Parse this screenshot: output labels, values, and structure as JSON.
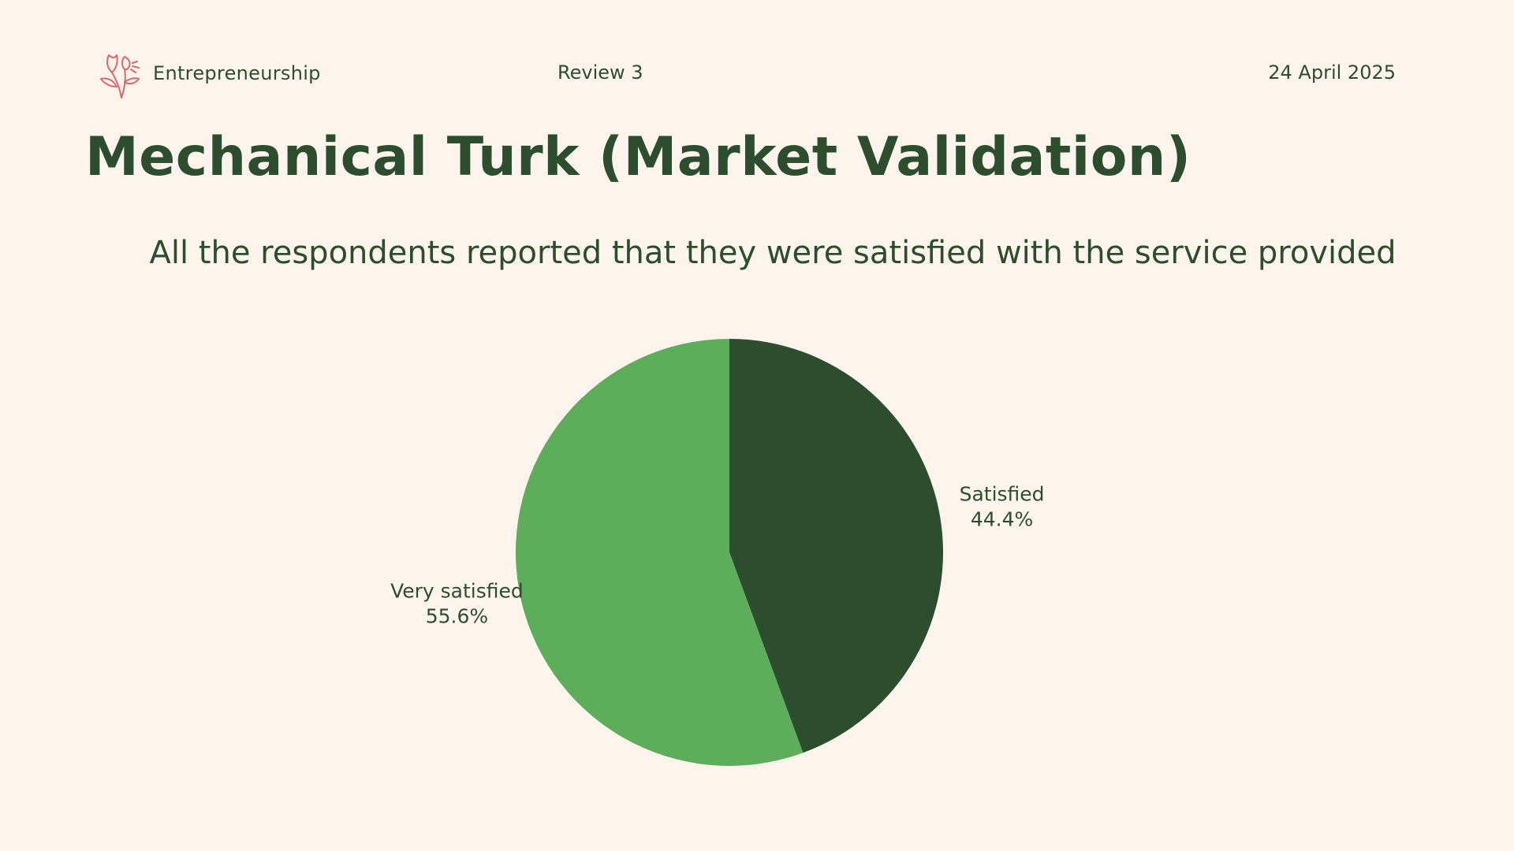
{
  "header": {
    "brand": "Entrepreneurship",
    "review": "Review 3",
    "date": "24 April 2025"
  },
  "title": "Mechanical Turk (Market Validation)",
  "subtitle": "All the respondents reported that they were satisfied with the service provided",
  "colors": {
    "background": "#fdf5ec",
    "text": "#2d4d2f",
    "satisfied": "#2d4d2f",
    "very_satisfied": "#5dae5b",
    "logo": "#e0646b"
  },
  "chart_data": {
    "type": "pie",
    "title": "",
    "slices": [
      {
        "label": "Satisfied",
        "value": 44.4,
        "value_label": "44.4%",
        "color": "#2d4d2f"
      },
      {
        "label": "Very satisfied",
        "value": 55.6,
        "value_label": "55.6%",
        "color": "#5dae5b"
      }
    ]
  }
}
